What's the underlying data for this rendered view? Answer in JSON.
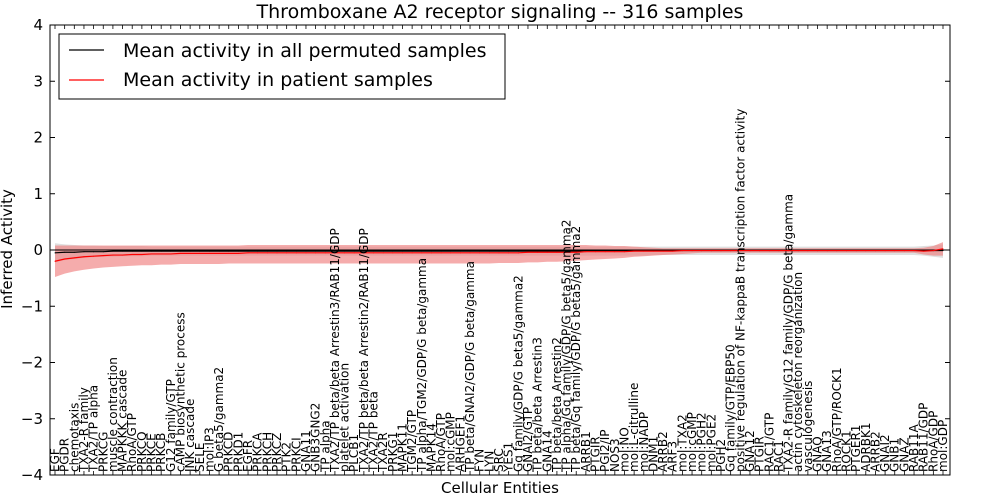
{
  "chart_data": {
    "type": "line",
    "title": "Thromboxane A2 receptor signaling -- 316 samples",
    "xlabel": "Cellular Entities",
    "ylabel": "Inferred Activity",
    "ylim": [
      -4,
      4
    ],
    "yticks": [
      4,
      3,
      2,
      1,
      0,
      -1,
      -2,
      -3,
      -4
    ],
    "ytick_labels": [
      "4",
      "3",
      "2",
      "1",
      "0",
      "−1",
      "−2",
      "−3",
      "−4"
    ],
    "legend_position": "top-left",
    "categories": [
      "EGF",
      "PGDR",
      "chemotaxis",
      "TXA2-R family",
      "TXA2/TP alpha",
      "PRKCG",
      "muscle contraction",
      "MAPKKK cascade",
      "RhoA/GTP",
      "PRKCQ",
      "PRKCE",
      "PRKCB",
      "G12 family/GTP",
      "cAMP biosynthetic process",
      "JNK cascade",
      "SELE",
      "mol:IP3",
      "G beta5/gamma2",
      "PRKCD",
      "PRKD1",
      "EGFR",
      "PRKCA",
      "PRKCH",
      "PRKCZ",
      "PTK2",
      "PRKCI",
      "GNA11",
      "GNB3GNG2",
      "TP alpha",
      "TXA2/TP beta/beta Arrestin3/RAB11/GDP",
      "platelet activation",
      "PLCB1",
      "TXA2/TP beta/beta Arrestin2/RAB11/GDP",
      "TXA2/TP beta",
      "TXA2R",
      "PRKG1",
      "MAPK11",
      "TGM2/GTP",
      "TP alpha/TGM2/GDP/G beta/gamma",
      "MAPK14",
      "RhoA/GTP",
      "mol:cGMP",
      "ARHGEF1",
      "TP beta/GNAI2/GDP/G beta/gamma",
      "FYN",
      "LYN",
      "SRC",
      "YES1",
      "Gq family/GDP/G beta5/gamma2",
      "GNAI2/GTP",
      "TP beta/beta Arrestin3",
      "GNA14",
      "TP beta/beta Arrestin2",
      "TP alpha/Gq family/GDP/G beta5/gamma2",
      "TP beta/Gq family/GDP/G beta5/gamma2",
      "ARRB1",
      "PTGIR",
      "PGI2/IP",
      "NOS3",
      "mol:NO",
      "mol:L-citrulline",
      "mol:NADP",
      "DNM1",
      "ARRB2",
      "ARF3",
      "mol:TXA2",
      "mol:cGMP",
      "mol:PGH2",
      "mol:PGE2",
      "PGH2",
      "Gq family/GTP/EBP50",
      "positive regulation of NF-kappaB transcription factor activity",
      "GNA12",
      "PTGIR",
      "RAC1/GTP",
      "RAC1",
      "TXA2-R family/G12 family/GDP/G beta/gamma",
      "actin cytoskeleton reorganization",
      "vasculogenesis",
      "GNAQ",
      "GNA13",
      "RhoA/GTP/ROCK1",
      "ROCK1",
      "PTGER1",
      "ADRBK1",
      "ARRB2",
      "GNAI2",
      "GNB1",
      "GNAZ",
      "RAB11A",
      "RAB11/GDP",
      "RhoA/GDP",
      "mol:GDP"
    ],
    "series": [
      {
        "name": "Mean activity in all permuted samples",
        "color": "#000000",
        "values": [
          -0.05,
          -0.04,
          -0.04,
          -0.03,
          -0.03,
          -0.03,
          -0.02,
          -0.02,
          -0.02,
          -0.02,
          -0.02,
          -0.02,
          -0.02,
          -0.02,
          -0.02,
          -0.02,
          -0.02,
          -0.02,
          -0.02,
          -0.02,
          -0.02,
          -0.02,
          -0.02,
          -0.02,
          -0.02,
          -0.02,
          -0.02,
          -0.02,
          -0.02,
          -0.02,
          -0.02,
          -0.02,
          -0.02,
          -0.02,
          -0.02,
          -0.02,
          -0.02,
          -0.02,
          -0.02,
          -0.02,
          -0.02,
          -0.02,
          -0.02,
          -0.02,
          -0.02,
          -0.02,
          -0.02,
          -0.02,
          -0.02,
          -0.02,
          -0.02,
          -0.02,
          -0.02,
          -0.02,
          -0.02,
          -0.01,
          -0.01,
          -0.01,
          -0.01,
          -0.01,
          -0.01,
          -0.01,
          -0.01,
          -0.01,
          -0.01,
          -0.01,
          -0.01,
          -0.01,
          -0.01,
          -0.01,
          -0.01,
          -0.01,
          -0.01,
          -0.01,
          -0.01,
          -0.01,
          -0.01,
          -0.01,
          -0.01,
          -0.01,
          -0.01,
          -0.01,
          -0.01,
          -0.01,
          -0.01,
          -0.01,
          -0.01,
          -0.01,
          -0.01,
          -0.01,
          -0.01,
          -0.01,
          -0.01
        ],
        "band_low": [
          -0.22,
          -0.18,
          -0.16,
          -0.14,
          -0.13,
          -0.12,
          -0.12,
          -0.11,
          -0.11,
          -0.11,
          -0.1,
          -0.1,
          -0.1,
          -0.1,
          -0.1,
          -0.1,
          -0.1,
          -0.1,
          -0.1,
          -0.1,
          -0.1,
          -0.1,
          -0.1,
          -0.1,
          -0.1,
          -0.1,
          -0.1,
          -0.1,
          -0.1,
          -0.1,
          -0.1,
          -0.1,
          -0.1,
          -0.1,
          -0.1,
          -0.1,
          -0.1,
          -0.1,
          -0.1,
          -0.1,
          -0.1,
          -0.1,
          -0.1,
          -0.1,
          -0.1,
          -0.1,
          -0.1,
          -0.1,
          -0.1,
          -0.1,
          -0.1,
          -0.1,
          -0.1,
          -0.1,
          -0.1,
          -0.1,
          -0.1,
          -0.1,
          -0.1,
          -0.1,
          -0.1,
          -0.1,
          -0.09,
          -0.09,
          -0.09,
          -0.09,
          -0.09,
          -0.09,
          -0.09,
          -0.09,
          -0.09,
          -0.09,
          -0.09,
          -0.09,
          -0.09,
          -0.09,
          -0.09,
          -0.09,
          -0.09,
          -0.09,
          -0.09,
          -0.09,
          -0.09,
          -0.09,
          -0.09,
          -0.09,
          -0.09,
          -0.09,
          -0.09,
          -0.09,
          -0.1,
          -0.12,
          -0.14
        ],
        "band_high": [
          0.12,
          0.1,
          0.09,
          0.08,
          0.08,
          0.07,
          0.07,
          0.07,
          0.07,
          0.07,
          0.06,
          0.06,
          0.06,
          0.06,
          0.06,
          0.06,
          0.06,
          0.06,
          0.06,
          0.06,
          0.06,
          0.06,
          0.06,
          0.06,
          0.06,
          0.06,
          0.06,
          0.06,
          0.06,
          0.06,
          0.06,
          0.06,
          0.06,
          0.06,
          0.06,
          0.06,
          0.06,
          0.06,
          0.06,
          0.06,
          0.06,
          0.06,
          0.06,
          0.06,
          0.06,
          0.06,
          0.06,
          0.06,
          0.06,
          0.06,
          0.06,
          0.06,
          0.06,
          0.06,
          0.06,
          0.06,
          0.06,
          0.06,
          0.06,
          0.06,
          0.06,
          0.06,
          0.06,
          0.06,
          0.06,
          0.06,
          0.06,
          0.06,
          0.06,
          0.06,
          0.06,
          0.06,
          0.06,
          0.06,
          0.06,
          0.06,
          0.06,
          0.06,
          0.06,
          0.06,
          0.06,
          0.06,
          0.06,
          0.06,
          0.06,
          0.06,
          0.06,
          0.06,
          0.06,
          0.06,
          0.07,
          0.08,
          0.1
        ]
      },
      {
        "name": "Mean activity in patient samples",
        "color": "#ff0000",
        "values": [
          -0.2,
          -0.16,
          -0.14,
          -0.12,
          -0.11,
          -0.1,
          -0.09,
          -0.09,
          -0.08,
          -0.08,
          -0.07,
          -0.07,
          -0.07,
          -0.06,
          -0.06,
          -0.06,
          -0.06,
          -0.06,
          -0.06,
          -0.06,
          -0.05,
          -0.05,
          -0.05,
          -0.05,
          -0.05,
          -0.05,
          -0.05,
          -0.05,
          -0.05,
          -0.05,
          -0.05,
          -0.05,
          -0.05,
          -0.05,
          -0.05,
          -0.05,
          -0.05,
          -0.05,
          -0.05,
          -0.05,
          -0.05,
          -0.05,
          -0.05,
          -0.05,
          -0.05,
          -0.05,
          -0.05,
          -0.05,
          -0.05,
          -0.04,
          -0.04,
          -0.04,
          -0.04,
          -0.04,
          -0.04,
          -0.03,
          -0.03,
          -0.03,
          -0.03,
          -0.03,
          -0.02,
          -0.02,
          -0.02,
          -0.02,
          -0.02,
          -0.01,
          -0.01,
          -0.01,
          -0.01,
          -0.01,
          -0.01,
          -0.01,
          -0.01,
          -0.01,
          -0.01,
          -0.01,
          -0.01,
          -0.01,
          -0.01,
          -0.01,
          -0.01,
          -0.01,
          -0.01,
          -0.01,
          -0.01,
          -0.01,
          -0.01,
          -0.01,
          -0.01,
          -0.01,
          -0.02,
          -0.01,
          0.02
        ],
        "band_low": [
          -0.48,
          -0.42,
          -0.38,
          -0.35,
          -0.33,
          -0.31,
          -0.3,
          -0.29,
          -0.28,
          -0.27,
          -0.27,
          -0.26,
          -0.26,
          -0.25,
          -0.25,
          -0.25,
          -0.25,
          -0.25,
          -0.24,
          -0.24,
          -0.24,
          -0.24,
          -0.24,
          -0.24,
          -0.24,
          -0.24,
          -0.24,
          -0.24,
          -0.24,
          -0.24,
          -0.24,
          -0.24,
          -0.24,
          -0.24,
          -0.24,
          -0.24,
          -0.24,
          -0.24,
          -0.24,
          -0.24,
          -0.24,
          -0.24,
          -0.24,
          -0.24,
          -0.24,
          -0.24,
          -0.23,
          -0.23,
          -0.23,
          -0.22,
          -0.22,
          -0.21,
          -0.21,
          -0.2,
          -0.19,
          -0.18,
          -0.17,
          -0.16,
          -0.15,
          -0.14,
          -0.12,
          -0.11,
          -0.1,
          -0.09,
          -0.08,
          -0.07,
          -0.06,
          -0.05,
          -0.05,
          -0.05,
          -0.05,
          -0.05,
          -0.05,
          -0.05,
          -0.05,
          -0.05,
          -0.05,
          -0.05,
          -0.05,
          -0.05,
          -0.05,
          -0.05,
          -0.05,
          -0.05,
          -0.05,
          -0.05,
          -0.05,
          -0.05,
          -0.05,
          -0.05,
          -0.08,
          -0.1,
          -0.1
        ],
        "band_high": [
          0.08,
          0.08,
          0.08,
          0.08,
          0.08,
          0.08,
          0.08,
          0.08,
          0.08,
          0.08,
          0.08,
          0.08,
          0.08,
          0.08,
          0.08,
          0.08,
          0.08,
          0.08,
          0.08,
          0.08,
          0.09,
          0.09,
          0.09,
          0.09,
          0.09,
          0.09,
          0.09,
          0.09,
          0.09,
          0.09,
          0.09,
          0.09,
          0.09,
          0.09,
          0.09,
          0.09,
          0.09,
          0.09,
          0.09,
          0.09,
          0.09,
          0.09,
          0.09,
          0.09,
          0.09,
          0.09,
          0.09,
          0.09,
          0.09,
          0.09,
          0.09,
          0.09,
          0.09,
          0.09,
          0.09,
          0.09,
          0.08,
          0.08,
          0.07,
          0.07,
          0.06,
          0.05,
          0.04,
          0.03,
          0.03,
          0.03,
          0.03,
          0.03,
          0.03,
          0.03,
          0.03,
          0.03,
          0.03,
          0.03,
          0.03,
          0.03,
          0.03,
          0.03,
          0.03,
          0.03,
          0.03,
          0.03,
          0.03,
          0.03,
          0.03,
          0.03,
          0.03,
          0.03,
          0.03,
          0.03,
          0.04,
          0.07,
          0.14
        ]
      }
    ],
    "colors": {
      "permuted_band": "#d9d9d9",
      "patient_band": "#f08080",
      "zero_line": "#000000",
      "axes": "#000000"
    }
  }
}
